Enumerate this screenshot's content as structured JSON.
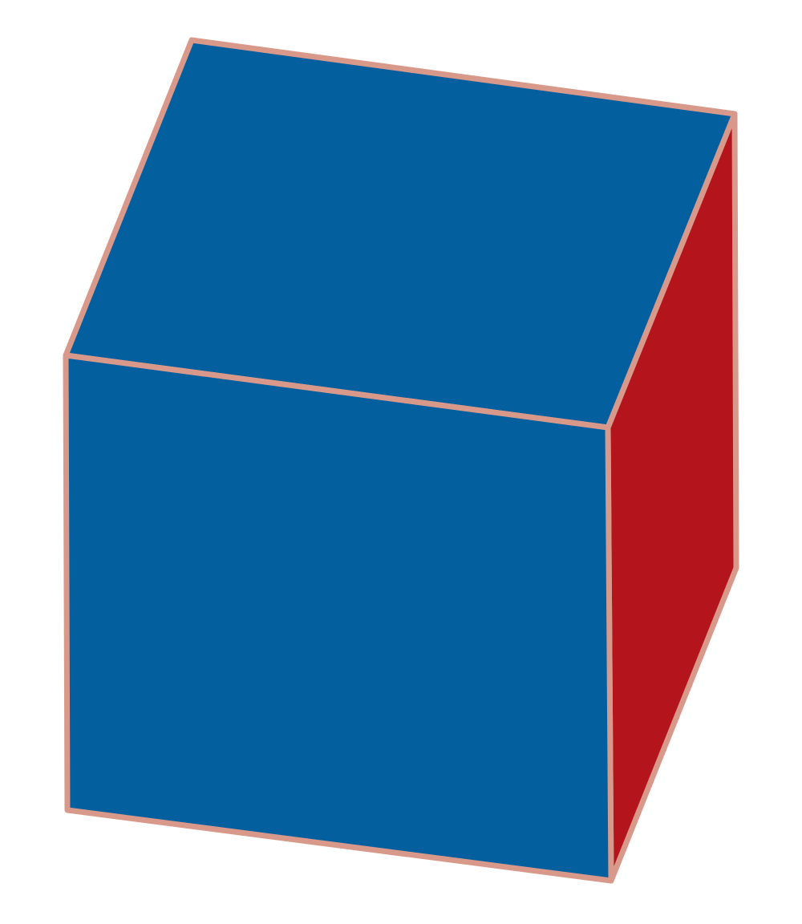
{
  "diagram": {
    "shape": "cube",
    "faces": [
      {
        "name": "top-face",
        "color": "#045f9f"
      },
      {
        "name": "front-face",
        "color": "#045f9f"
      },
      {
        "name": "right-face",
        "color": "#b4151c"
      }
    ],
    "edge_color": "#d9998a",
    "background": "#ffffff"
  }
}
